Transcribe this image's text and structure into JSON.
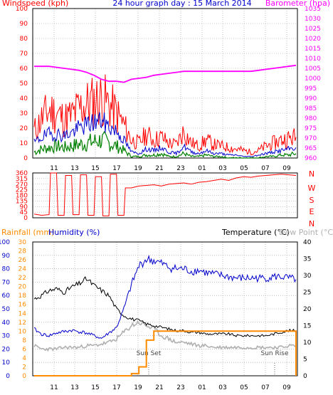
{
  "colors": {
    "wind": "#ff0000",
    "gust": "#ff0000",
    "avg": "#0000cc",
    "low": "#008000",
    "baro": "#ff00ff",
    "dir": "#ff0000",
    "temp": "#000000",
    "dew": "#b0b0b0",
    "humidity": "#0000cc",
    "rain": "#ff8c00",
    "title": "#0000cc",
    "bg": "#ffffff"
  },
  "labels": {
    "windspeed": "Windspeed (kph)",
    "title": "24 hour graph day : 15 March 2014",
    "barometer": "Barometer (hpa)",
    "rainfall": "Rainfall (mm)",
    "humidity": "Humidity (%)",
    "temperature": "Temperature (°C)",
    "dewpoint": "Dew Point (°C)",
    "sunset": "Sun Set",
    "sunrise": "Sun Rise"
  },
  "chart_data": [
    {
      "type": "line",
      "title": "24 hour graph day : 15 March 2014",
      "x_ticks": [
        "11",
        "13",
        "15",
        "17",
        "19",
        "21",
        "23",
        "01",
        "03",
        "05",
        "07",
        "09"
      ],
      "ylabel": "Windspeed (kph)",
      "ylim": [
        0,
        100
      ],
      "y_ticks": [
        0,
        10,
        20,
        30,
        40,
        50,
        60,
        70,
        80,
        90,
        100
      ],
      "y2label": "Barometer (hpa)",
      "y2lim": [
        960,
        1035
      ],
      "y2_ticks": [
        960,
        965,
        970,
        975,
        980,
        985,
        990,
        995,
        1000,
        1005,
        1010,
        1015,
        1020,
        1025,
        1030,
        1035
      ],
      "grid": true,
      "series": [
        {
          "name": "gust",
          "axis": "left",
          "values": [
            18,
            26,
            32,
            30,
            26,
            28,
            33,
            36,
            38,
            40,
            36,
            30,
            22,
            12,
            10,
            16,
            12,
            14,
            10,
            9,
            18,
            10,
            8,
            12,
            9,
            8,
            7,
            6,
            5,
            4,
            5,
            8,
            10,
            12,
            13,
            14
          ]
        },
        {
          "name": "average",
          "axis": "left",
          "values": [
            10,
            14,
            16,
            16,
            15,
            17,
            20,
            22,
            24,
            25,
            21,
            18,
            12,
            4,
            3,
            6,
            5,
            7,
            4,
            3,
            8,
            4,
            3,
            5,
            3,
            3,
            2,
            2,
            1,
            1,
            2,
            3,
            4,
            5,
            6,
            7
          ]
        },
        {
          "name": "low",
          "axis": "left",
          "values": [
            4,
            6,
            7,
            8,
            7,
            8,
            9,
            10,
            11,
            12,
            10,
            8,
            5,
            1,
            1,
            2,
            2,
            3,
            1,
            1,
            3,
            1,
            1,
            2,
            1,
            1,
            0,
            0,
            0,
            0,
            0,
            1,
            1,
            2,
            2,
            3
          ]
        },
        {
          "name": "barometer",
          "axis": "right",
          "values": [
            1006,
            1006,
            1006,
            1005.5,
            1005,
            1004.5,
            1004,
            1003,
            1001.5,
            999.5,
            998.5,
            998.5,
            998,
            999.5,
            1000,
            1000.5,
            1001.5,
            1002,
            1002.5,
            1003,
            1003.5,
            1003.5,
            1003.5,
            1003.5,
            1003.5,
            1003.5,
            1003.5,
            1003.5,
            1003.5,
            1003.5,
            1004,
            1004.5,
            1005,
            1005.5,
            1006,
            1006.5
          ]
        }
      ]
    },
    {
      "type": "scatter",
      "x_ticks": [
        "11",
        "13",
        "15",
        "17",
        "19",
        "21",
        "23",
        "01",
        "03",
        "05",
        "07",
        "09"
      ],
      "ylabel": "Wind Direction",
      "ylim": [
        0,
        360
      ],
      "y_ticks": [
        0,
        45,
        90,
        135,
        180,
        225,
        270,
        315,
        360
      ],
      "compass": [
        "N",
        "W",
        "S",
        "E",
        "N"
      ],
      "grid": true,
      "series": [
        {
          "name": "direction",
          "values": [
            30,
            20,
            25,
            360,
            20,
            340,
            25,
            345,
            20,
            330,
            15,
            350,
            20,
            240,
            255,
            260,
            265,
            255,
            270,
            275,
            280,
            270,
            285,
            290,
            300,
            310,
            300,
            320,
            330,
            325,
            335,
            340,
            345,
            350,
            345,
            340
          ]
        }
      ]
    },
    {
      "type": "line",
      "x_ticks": [
        "11",
        "13",
        "15",
        "17",
        "19",
        "21",
        "23",
        "01",
        "03",
        "05",
        "07",
        "09"
      ],
      "y1label": "Rainfall (mm)",
      "y1lim": [
        0,
        30
      ],
      "y1_ticks": [
        0,
        2,
        4,
        6,
        8,
        10,
        12,
        14,
        16,
        18,
        20,
        22,
        24,
        26,
        28,
        30
      ],
      "y2label": "Humidity (%)",
      "y2lim": [
        0,
        100
      ],
      "y2_ticks": [
        0,
        10,
        20,
        30,
        40,
        50,
        60,
        70,
        80,
        90,
        100
      ],
      "y3label": "Temperature (°C)",
      "y3lim": [
        0,
        40
      ],
      "y3_ticks": [
        0,
        5,
        10,
        15,
        20,
        25,
        30,
        35,
        40
      ],
      "grid": true,
      "annotations": [
        "Sun Set",
        "Sun Rise"
      ],
      "series": [
        {
          "name": "temperature",
          "axis": "right",
          "values": [
            23,
            24,
            25.5,
            26,
            25,
            26.5,
            27.5,
            29,
            27,
            25.5,
            24,
            20,
            18,
            17,
            16.5,
            15.5,
            15,
            14.5,
            14,
            13.5,
            13.5,
            13,
            13,
            12.5,
            12.5,
            12.5,
            12.5,
            12,
            12,
            12,
            12,
            12,
            12.5,
            13,
            13.5,
            13.5
          ]
        },
        {
          "name": "dewpoint",
          "axis": "right",
          "values": [
            9,
            8,
            8,
            8,
            8.5,
            8.5,
            8.5,
            9,
            9,
            9.5,
            10,
            11,
            13,
            15,
            16,
            15,
            14,
            12,
            11,
            10,
            10,
            9.5,
            9,
            9,
            8.5,
            8.5,
            8.5,
            8.5,
            8.5,
            8.5,
            8.5,
            8.5,
            8.5,
            8.5,
            9,
            9
          ]
        },
        {
          "name": "humidity",
          "axis": "middle",
          "values": [
            35,
            31,
            30,
            32,
            33,
            34,
            33,
            32,
            30,
            28,
            32,
            36,
            50,
            68,
            82,
            87,
            86,
            84,
            81,
            80,
            80,
            78,
            79,
            77,
            76,
            75,
            74,
            73,
            73,
            73,
            73,
            73,
            74,
            74,
            73,
            72
          ]
        },
        {
          "name": "rainfall",
          "axis": "left",
          "values": [
            0,
            0,
            0,
            0,
            0,
            0,
            0,
            0,
            0,
            0,
            0,
            0,
            0,
            0.5,
            2,
            8,
            10,
            10,
            10,
            10,
            10,
            10,
            10,
            10,
            10,
            10,
            10,
            10,
            10,
            10,
            10,
            10,
            10,
            10,
            10,
            0
          ]
        }
      ]
    }
  ]
}
